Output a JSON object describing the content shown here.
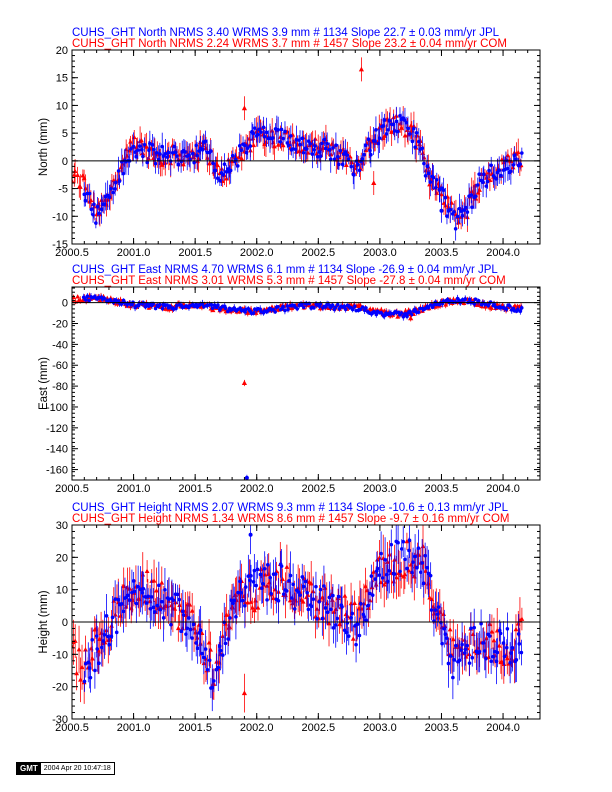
{
  "chart_data": [
    {
      "type": "scatter",
      "panel": "north",
      "titles": [
        {
          "text": "CUHS_GHT North NRMS 3.40 WRMS  3.9 mm # 1134 Slope   22.7 ±  0.03 mm/yr JPL",
          "color": "#0000ff"
        },
        {
          "text": "CUHS_GHT North NRMS 2.24 WRMS  3.7 mm # 1457 Slope   23.2 ±  0.04 mm/yr COM",
          "color": "#ff0000"
        }
      ],
      "ylabel": "North (mm)",
      "xlim": [
        2000.5,
        2004.3
      ],
      "ylim": [
        -15,
        20
      ],
      "xticks": [
        "2000.5",
        "2001.0",
        "2001.5",
        "2002.0",
        "2002.5",
        "2003.0",
        "2003.5",
        "2004.0"
      ],
      "yticks": [
        "-15",
        "-10",
        "-5",
        "0",
        "5",
        "10",
        "15",
        "20"
      ],
      "series": [
        {
          "name": "COM",
          "color": "#ff0000",
          "marker": "triangle",
          "x": [
            2000.5,
            2000.6,
            2000.7,
            2000.8,
            2001.0,
            2001.2,
            2001.4,
            2001.6,
            2001.7,
            2001.9,
            2002.0,
            2002.2,
            2002.4,
            2002.6,
            2002.8,
            2003.0,
            2003.1,
            2003.2,
            2003.3,
            2003.4,
            2003.5,
            2003.6,
            2003.7,
            2003.8,
            2004.0,
            2004.15
          ],
          "y": [
            -3,
            -4,
            -9,
            -6,
            3,
            1,
            1,
            2,
            -3,
            2,
            5,
            4,
            3,
            2,
            -1,
            5,
            7,
            6,
            4,
            -3,
            -5,
            -10,
            -9,
            -4,
            -1,
            1
          ]
        },
        {
          "name": "JPL",
          "color": "#0000ff",
          "marker": "circle",
          "x": [
            2000.6,
            2000.7,
            2000.8,
            2001.0,
            2001.2,
            2001.4,
            2001.6,
            2001.7,
            2001.9,
            2002.0,
            2002.2,
            2002.4,
            2002.6,
            2002.8,
            2003.0,
            2003.1,
            2003.2,
            2003.3,
            2003.4,
            2003.5,
            2003.6,
            2003.7,
            2003.8,
            2004.0,
            2004.15
          ],
          "y": [
            -5,
            -10,
            -6,
            2,
            1,
            1,
            2,
            -3,
            2,
            5,
            4,
            3,
            2,
            -1,
            5,
            7,
            6,
            4,
            -3,
            -6,
            -11,
            -9,
            -4,
            -1,
            0
          ]
        }
      ],
      "outliers": [
        {
          "x": 2002.85,
          "y": 16.5,
          "color": "#ff0000"
        },
        {
          "x": 2001.9,
          "y": 9.5,
          "color": "#ff0000"
        },
        {
          "x": 2002.95,
          "y": -4,
          "color": "#ff0000"
        },
        {
          "x": 2003.5,
          "y": -9,
          "color": "#0000ff"
        }
      ]
    },
    {
      "type": "scatter",
      "panel": "east",
      "titles": [
        {
          "text": "CUHS_GHT East NRMS 4.70 WRMS  6.1 mm # 1134 Slope  -26.9 ±  0.04 mm/yr JPL",
          "color": "#0000ff"
        },
        {
          "text": "CUHS_GHT East NRMS 3.01 WRMS  5.3 mm # 1457 Slope  -27.8 ±  0.04 mm/yr COM",
          "color": "#ff0000"
        }
      ],
      "ylabel": "East (mm)",
      "xlim": [
        2000.5,
        2004.3
      ],
      "ylim": [
        -170,
        15
      ],
      "xticks": [
        "2000.5",
        "2001.0",
        "2001.5",
        "2002.0",
        "2002.5",
        "2003.0",
        "2003.5",
        "2004.0"
      ],
      "yticks": [
        "-160",
        "-140",
        "-120",
        "-100",
        "-80",
        "-60",
        "-40",
        "-20",
        "0"
      ],
      "series": [
        {
          "name": "COM",
          "color": "#ff0000",
          "marker": "triangle",
          "x": [
            2000.5,
            2000.7,
            2000.9,
            2001.1,
            2001.3,
            2001.5,
            2001.7,
            2001.9,
            2002.1,
            2002.3,
            2002.5,
            2002.7,
            2002.9,
            2003.1,
            2003.3,
            2003.5,
            2003.7,
            2003.9,
            2004.15
          ],
          "y": [
            3,
            5,
            0,
            -3,
            -4,
            -2,
            -6,
            -8,
            -7,
            -3,
            -3,
            -4,
            -5,
            -12,
            -8,
            0,
            2,
            -3,
            -6
          ]
        },
        {
          "name": "JPL",
          "color": "#0000ff",
          "marker": "circle",
          "x": [
            2000.6,
            2000.8,
            2001.0,
            2001.2,
            2001.4,
            2001.6,
            2001.8,
            2002.0,
            2002.2,
            2002.4,
            2002.6,
            2002.8,
            2003.0,
            2003.2,
            2003.4,
            2003.6,
            2003.8,
            2004.0,
            2004.15
          ],
          "y": [
            4,
            3,
            -2,
            -4,
            -4,
            -3,
            -7,
            -8,
            -6,
            -3,
            -4,
            -5,
            -10,
            -12,
            -3,
            2,
            1,
            -4,
            -7
          ]
        }
      ],
      "outliers": [
        {
          "x": 2001.9,
          "y": -77,
          "color": "#ff0000"
        },
        {
          "x": 2001.92,
          "y": -168,
          "color": "#0000ff"
        },
        {
          "x": 2003.25,
          "y": -15,
          "color": "#ff0000"
        }
      ]
    },
    {
      "type": "scatter",
      "panel": "height",
      "titles": [
        {
          "text": "CUHS_GHT Height NRMS 2.07 WRMS  9.3 mm # 1134 Slope  -10.6 ±  0.13 mm/yr JPL",
          "color": "#0000ff"
        },
        {
          "text": "CUHS_GHT Height NRMS 1.34 WRMS  8.6 mm # 1457 Slope   -9.7 ±  0.16 mm/yr COM",
          "color": "#ff0000"
        }
      ],
      "ylabel": "Height (mm)",
      "xlim": [
        2000.5,
        2004.3
      ],
      "ylim": [
        -30,
        30
      ],
      "xticks": [
        "2000.5",
        "2001.0",
        "2001.5",
        "2002.0",
        "2002.5",
        "2003.0",
        "2003.5",
        "2004.0"
      ],
      "yticks": [
        "-30",
        "-20",
        "-10",
        "0",
        "10",
        "20",
        "30"
      ],
      "series": [
        {
          "name": "COM",
          "color": "#ff0000",
          "marker": "triangle",
          "x": [
            2000.5,
            2000.6,
            2000.7,
            2000.9,
            2001.1,
            2001.3,
            2001.5,
            2001.65,
            2001.8,
            2002.0,
            2002.2,
            2002.4,
            2002.6,
            2002.8,
            2003.0,
            2003.2,
            2003.35,
            2003.5,
            2003.6,
            2003.8,
            2004.0,
            2004.15
          ],
          "y": [
            -10,
            -15,
            -5,
            5,
            10,
            5,
            0,
            -15,
            5,
            10,
            12,
            8,
            5,
            0,
            15,
            20,
            18,
            0,
            -10,
            -5,
            -8,
            -5
          ]
        },
        {
          "name": "JPL",
          "color": "#0000ff",
          "marker": "circle",
          "x": [
            2000.6,
            2000.75,
            2000.9,
            2001.1,
            2001.3,
            2001.5,
            2001.65,
            2001.8,
            2002.0,
            2002.2,
            2002.4,
            2002.6,
            2002.8,
            2003.0,
            2003.2,
            2003.35,
            2003.5,
            2003.6,
            2003.8,
            2004.0,
            2004.15
          ],
          "y": [
            -15,
            -5,
            5,
            10,
            5,
            0,
            -18,
            5,
            12,
            12,
            8,
            5,
            -2,
            15,
            22,
            18,
            -2,
            -12,
            -5,
            -8,
            -6
          ]
        }
      ],
      "outliers": [
        {
          "x": 2001.9,
          "y": -22,
          "color": "#ff0000"
        },
        {
          "x": 2001.95,
          "y": 27,
          "color": "#0000ff"
        }
      ]
    }
  ],
  "footer": {
    "logo": "GMT",
    "timestamp": "2004 Apr 20 10:47:18"
  }
}
